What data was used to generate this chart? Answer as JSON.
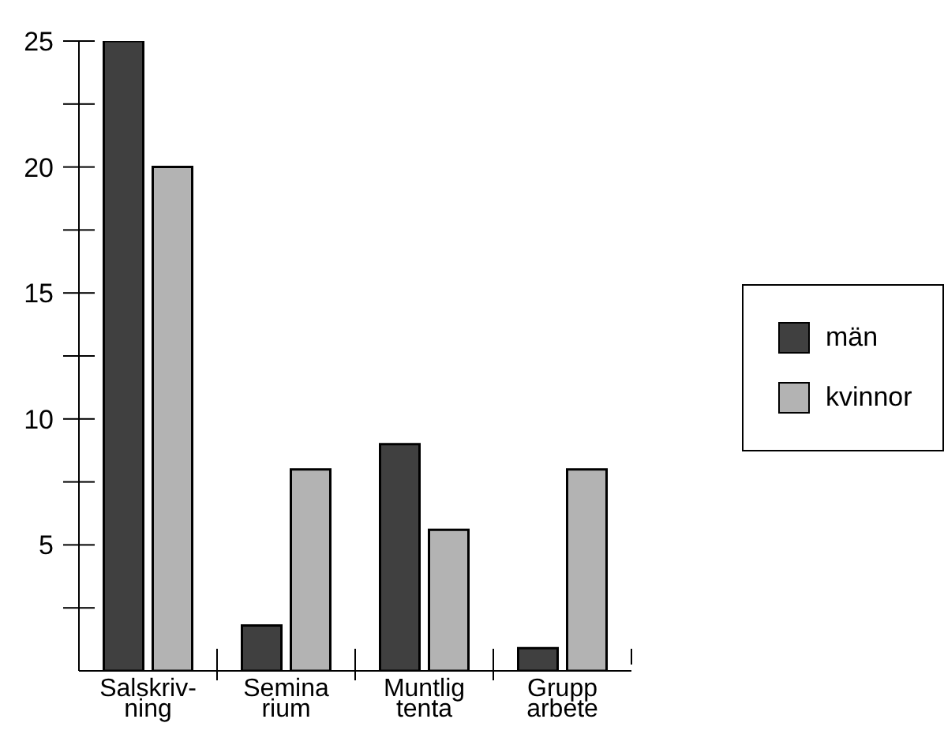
{
  "chart_data": {
    "type": "bar",
    "categories": [
      "Salskriv-\nning",
      "Semina\nrium",
      "Muntlig\ntenta",
      "Grupp\narbete"
    ],
    "series": [
      {
        "name": "män",
        "color": "#404040",
        "values": [
          25,
          1.8,
          9,
          0.9
        ]
      },
      {
        "name": "kvinnor",
        "color": "#b3b3b3",
        "values": [
          20,
          8,
          5.6,
          8
        ]
      }
    ],
    "ylim": [
      0,
      25
    ],
    "yticks": [
      {
        "value": 2.5,
        "label": null
      },
      5,
      {
        "value": 7.5,
        "label": null
      },
      10,
      {
        "value": 12.5,
        "label": null
      },
      15,
      {
        "value": 17.5,
        "label": null
      },
      20,
      {
        "value": 22.5,
        "label": null
      },
      25
    ],
    "grid": false,
    "legend": "right"
  }
}
